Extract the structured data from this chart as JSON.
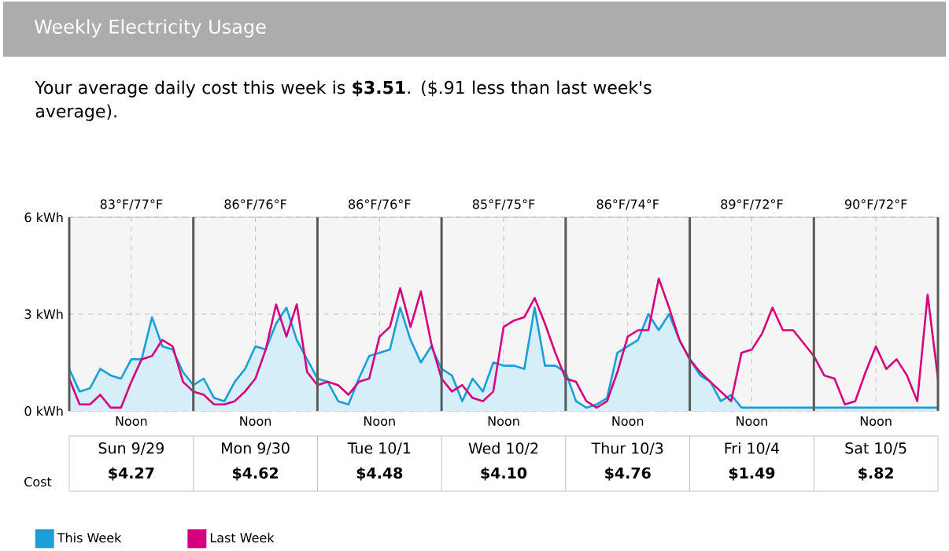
{
  "chart_data": {
    "type": "line",
    "title": "Weekly Electricity Usage",
    "subtitle": "Your average daily cost this week is **$3.51**. ($.91 less than last week's average).",
    "categories": [
      null,
      null,
      null,
      null,
      null,
      null,
      "Noon",
      null,
      null,
      null,
      null,
      null,
      null,
      null,
      null,
      null,
      null,
      null,
      "Noon",
      null,
      null,
      null,
      null,
      null,
      null,
      null,
      null,
      null,
      null,
      null,
      "Noon",
      null,
      null,
      null,
      null,
      null,
      null,
      null,
      null,
      null,
      null,
      null,
      "Noon",
      null,
      null,
      null,
      null,
      null,
      null,
      null,
      null,
      null,
      null,
      null,
      "Noon",
      null,
      null,
      null,
      null,
      null,
      null,
      null,
      null,
      null,
      null,
      null,
      "Noon",
      null,
      null,
      null,
      null,
      null,
      null,
      null,
      null,
      null,
      null,
      null,
      "Noon",
      null,
      null,
      null,
      null,
      null,
      null
    ],
    "ylim": [
      0,
      6
    ],
    "yticks": [
      {
        "value": 0,
        "label": "0 kWh"
      },
      {
        "value": 3,
        "label": "3 kWh"
      },
      {
        "value": 6,
        "label": "6 kWh"
      }
    ],
    "grid": true,
    "legend": "bottom left",
    "annotations": [
      "Cost",
      "83°F/77°F",
      "86°F/76°F",
      "86°F/76°F",
      "85°F/75°F",
      "86°F/74°F",
      "89°F/72°F",
      "90°F/72°F",
      "Sun 9/29",
      "Mon 9/30",
      "Tue 10/1",
      "Wed 10/2",
      "Thur 10/3",
      "Fri 10/4",
      "Sat 10/5",
      "$4.27",
      "$4.62",
      "$4.48",
      "$4.10",
      "$4.76",
      "$1.49",
      "$.82"
    ],
    "series": [
      {
        "name": "This Week",
        "type": "area",
        "color": "#1a9fd9",
        "values": [
          1.3,
          0.6,
          0.7,
          1.3,
          1.1,
          1.0,
          1.6,
          1.6,
          2.9,
          2.0,
          1.9,
          1.2,
          0.8,
          1.0,
          0.4,
          0.3,
          0.9,
          1.3,
          2.0,
          1.9,
          2.7,
          3.2,
          2.2,
          1.6,
          1.0,
          0.9,
          0.3,
          0.2,
          1.0,
          1.7,
          1.8,
          1.9,
          3.2,
          2.2,
          1.5,
          2.0,
          1.3,
          1.1,
          0.3,
          1.0,
          0.6,
          1.5,
          1.4,
          1.4,
          1.3,
          3.2,
          1.4,
          1.4,
          1.2,
          0.3,
          0.1,
          0.2,
          0.4,
          1.8,
          2.0,
          2.2,
          3.0,
          2.5,
          3.0,
          2.2,
          1.6,
          1.1,
          0.9,
          0.3,
          0.5,
          0.1,
          0.1,
          0.1,
          0.1,
          0.1,
          0.1,
          0.1,
          0.1,
          0.1,
          0.1,
          0.1,
          0.1,
          0.1,
          0.1,
          0.1,
          0.1,
          0.1,
          0.1,
          0.1,
          0.1
        ]
      },
      {
        "name": "Last Week",
        "color": "#d6007f",
        "values": [
          1.0,
          0.2,
          0.2,
          0.5,
          0.1,
          0.1,
          0.9,
          1.6,
          1.7,
          2.2,
          2.0,
          0.9,
          0.6,
          0.5,
          0.2,
          0.2,
          0.3,
          0.6,
          1.0,
          1.9,
          3.3,
          2.3,
          3.3,
          1.2,
          0.8,
          0.9,
          0.8,
          0.5,
          0.9,
          1.0,
          2.3,
          2.6,
          3.8,
          2.6,
          3.7,
          2.1,
          1.0,
          0.6,
          0.8,
          0.4,
          0.3,
          0.6,
          2.6,
          2.8,
          2.9,
          3.5,
          2.7,
          1.8,
          1.0,
          0.9,
          0.3,
          0.1,
          0.3,
          1.2,
          2.3,
          2.5,
          2.5,
          4.1,
          3.2,
          2.2,
          1.6,
          1.2,
          0.9,
          0.6,
          0.3,
          1.8,
          1.9,
          2.4,
          3.2,
          2.5,
          2.5,
          2.1,
          1.7,
          1.1,
          1.0,
          0.2,
          0.3,
          1.2,
          2.0,
          1.3,
          1.6,
          1.1,
          0.3,
          3.6,
          1.0
        ]
      }
    ]
  }
}
